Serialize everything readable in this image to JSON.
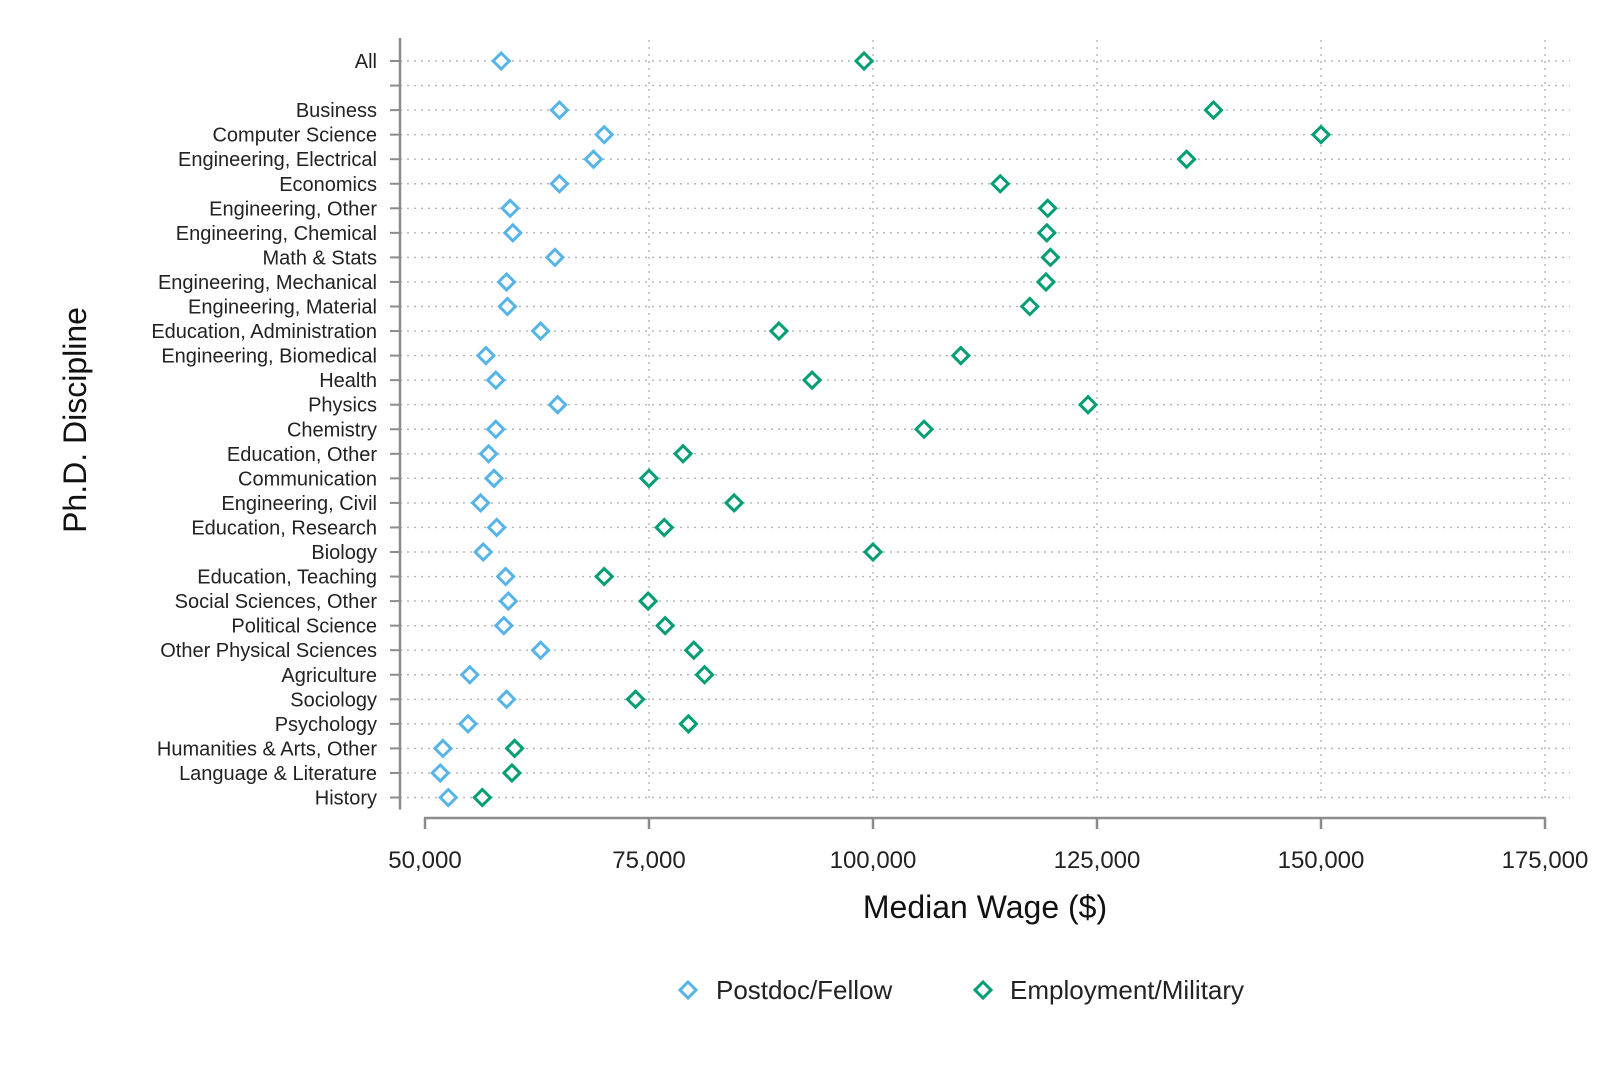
{
  "chart_data": {
    "type": "scatter",
    "orientation": "horizontal-dot-plot",
    "xlabel": "Median Wage ($)",
    "ylabel": "Ph.D. Discipline",
    "xlim": [
      50000,
      175000
    ],
    "x_ticks": [
      50000,
      75000,
      100000,
      125000,
      150000,
      175000
    ],
    "x_tick_labels": [
      "50,000",
      "75,000",
      "100,000",
      "125,000",
      "150,000",
      "175,000"
    ],
    "grid": true,
    "legend_position": "bottom",
    "categories": [
      "All",
      "",
      "Business",
      "Computer Science",
      "Engineering, Electrical",
      "Economics",
      "Engineering, Other",
      "Engineering, Chemical",
      "Math & Stats",
      "Engineering, Mechanical",
      "Engineering, Material",
      "Education, Administration",
      "Engineering, Biomedical",
      "Health",
      "Physics",
      "Chemistry",
      "Education, Other",
      "Communication",
      "Engineering, Civil",
      "Education, Research",
      "Biology",
      "Education, Teaching",
      "Social Sciences, Other",
      "Political Science",
      "Other Physical Sciences",
      "Agriculture",
      "Sociology",
      "Psychology",
      "Humanities & Arts, Other",
      "Language & Literature",
      "History"
    ],
    "series": [
      {
        "name": "Postdoc/Fellow",
        "color": "#56b4e9",
        "values": [
          58500,
          null,
          65000,
          70000,
          68800,
          65000,
          59500,
          59800,
          64500,
          59100,
          59200,
          62900,
          56800,
          57900,
          64800,
          57900,
          57100,
          57700,
          56200,
          58000,
          56500,
          59000,
          59300,
          58800,
          62900,
          55000,
          59100,
          54800,
          52000,
          51700,
          52600
        ]
      },
      {
        "name": "Employment/Military",
        "color": "#009e73",
        "values": [
          99000,
          null,
          138000,
          150000,
          135000,
          114200,
          119500,
          119400,
          119800,
          119300,
          117500,
          89500,
          109800,
          93200,
          124000,
          105700,
          78800,
          75000,
          84500,
          76700,
          100000,
          70000,
          74900,
          76800,
          80000,
          81200,
          73500,
          79400,
          60000,
          59700,
          56400
        ]
      }
    ]
  }
}
